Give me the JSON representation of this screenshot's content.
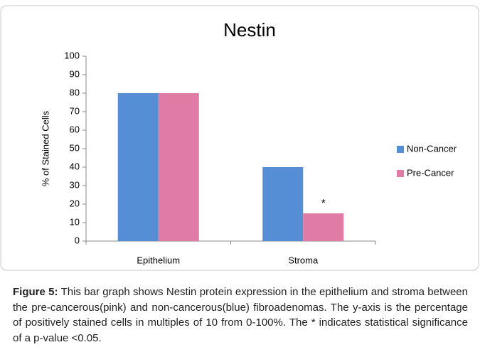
{
  "chart_data": {
    "type": "bar",
    "title": "Nestin",
    "ylabel": "% of Stained Cells",
    "categories": [
      "Epithelium",
      "Stroma"
    ],
    "series": [
      {
        "name": "Non-Cancer",
        "color": "#558ed5",
        "values": [
          80,
          40
        ]
      },
      {
        "name": "Pre-Cancer",
        "color": "#e07ba5",
        "values": [
          80,
          15
        ]
      }
    ],
    "annotation": "*",
    "ylim": [
      0,
      100
    ],
    "yticks": [
      0,
      10,
      20,
      30,
      40,
      50,
      60,
      70,
      80,
      90,
      100
    ],
    "legend": "right"
  },
  "caption": {
    "label": "Figure 5:",
    "text": "This bar graph shows Nestin protein expression in the epithelium and stroma between the pre-cancerous(pink) and non-cancerous(blue) fibroadenomas. The y-axis is the percentage of positively stained cells in multiples of 10 from 0-100%.  The * indicates statistical significance of a p-value <0.05."
  }
}
